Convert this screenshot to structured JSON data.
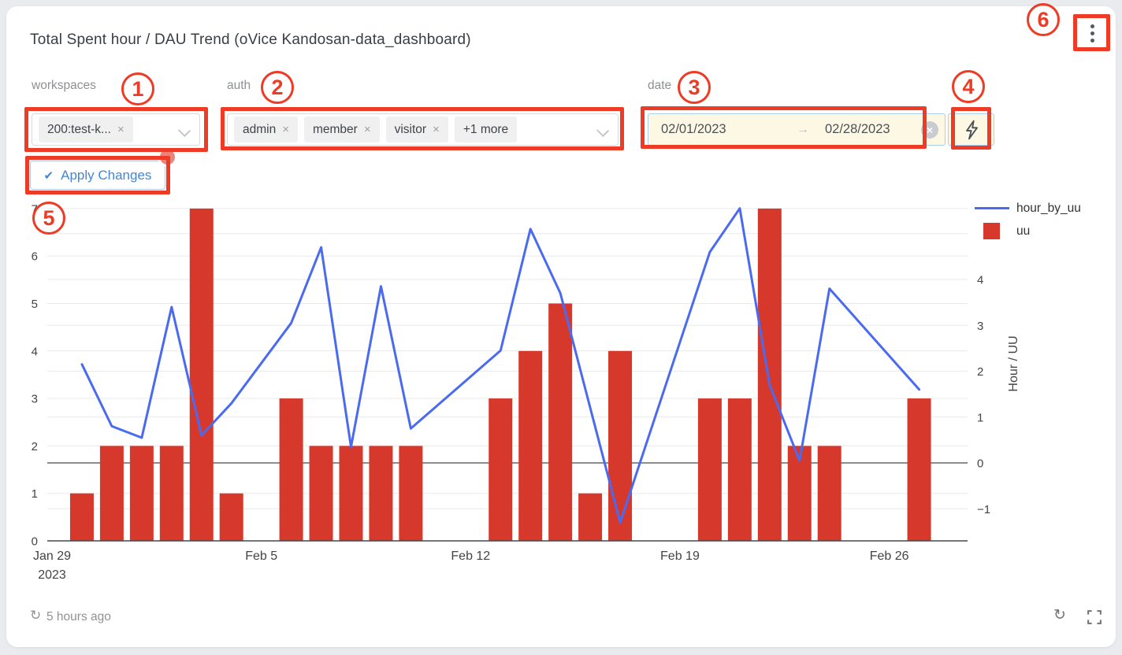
{
  "window": {
    "title": "Total Spent hour / DAU Trend (oVice Kandosan-data_dashboard)"
  },
  "filters": {
    "workspaces": {
      "label": "workspaces",
      "selected": [
        {
          "text": "200:test-k...",
          "remove": "×"
        }
      ]
    },
    "auth": {
      "label": "auth",
      "selected": [
        {
          "text": "admin",
          "remove": "×"
        },
        {
          "text": "member",
          "remove": "×"
        },
        {
          "text": "visitor",
          "remove": "×"
        }
      ],
      "overflow": "+1 more"
    },
    "date": {
      "label": "date",
      "start": "02/01/2023",
      "arrow": "→",
      "end": "02/28/2023",
      "clear": "×"
    }
  },
  "apply": {
    "label": "Apply Changes",
    "icon": "✔"
  },
  "annotations": {
    "color": "#ee3b26",
    "markers": [
      "1",
      "2",
      "3",
      "4",
      "5",
      "6"
    ]
  },
  "footer": {
    "last_updated": "5 hours ago",
    "refresh_glyph": "↻"
  },
  "chart_data": {
    "type": "bar+line combo",
    "title": "Total Spent hour / DAU Trend",
    "categories": [
      "Jan 29",
      "Jan 30",
      "Jan 31",
      "Feb 1",
      "Feb 2",
      "Feb 3",
      "Feb 4",
      "Feb 5",
      "Feb 6",
      "Feb 7",
      "Feb 8",
      "Feb 9",
      "Feb 10",
      "Feb 11",
      "Feb 12",
      "Feb 13",
      "Feb 14",
      "Feb 15",
      "Feb 16",
      "Feb 17",
      "Feb 18",
      "Feb 19",
      "Feb 20",
      "Feb 21",
      "Feb 22",
      "Feb 23",
      "Feb 24",
      "Feb 25",
      "Feb 26",
      "Feb 27",
      "Feb 28"
    ],
    "series": [
      {
        "name": "hour_by_uu",
        "type": "line",
        "axis": "right",
        "color": "#4a6af0",
        "values": [
          null,
          2.15,
          0.8,
          0.55,
          3.4,
          0.6,
          1.3,
          null,
          3.05,
          4.7,
          0.35,
          3.85,
          0.75,
          null,
          null,
          2.45,
          5.1,
          3.7,
          1.2,
          -1.3,
          null,
          null,
          4.6,
          5.55,
          1.7,
          0.05,
          3.8,
          null,
          null,
          1.6,
          null
        ]
      },
      {
        "name": "uu",
        "type": "bar",
        "axis": "left",
        "color": "#d6392b",
        "values": [
          0,
          1,
          2,
          2,
          2,
          7,
          1,
          0,
          3,
          2,
          2,
          2,
          2,
          0,
          0,
          3,
          4,
          5,
          1,
          4,
          0,
          0,
          3,
          3,
          7,
          2,
          2,
          0,
          0,
          3,
          0
        ]
      }
    ],
    "left_axis": {
      "range": [
        0,
        7.3
      ],
      "ticks": [
        {
          "v": 0,
          "label": "0"
        },
        {
          "v": 1,
          "label": "1"
        },
        {
          "v": 2,
          "label": "2"
        },
        {
          "v": 3,
          "label": "3"
        },
        {
          "v": 4,
          "label": "4"
        },
        {
          "v": 5,
          "label": "5"
        },
        {
          "v": 6,
          "label": "6"
        },
        {
          "v": 7,
          "label": "7"
        }
      ],
      "grid": [
        1,
        2,
        3,
        4,
        5,
        6,
        7
      ]
    },
    "right_axis": {
      "title": "Hour / UU",
      "range": [
        -1.7,
        5.55
      ],
      "ticks": [
        {
          "v": -1,
          "label": "−1"
        },
        {
          "v": 0,
          "label": "0"
        },
        {
          "v": 1,
          "label": "1"
        },
        {
          "v": 2,
          "label": "2"
        },
        {
          "v": 3,
          "label": "3"
        },
        {
          "v": 4,
          "label": "4"
        }
      ],
      "grid": [
        -1,
        1,
        2,
        3,
        4,
        5
      ]
    },
    "x_axis": {
      "ticks": [
        {
          "pos": 0,
          "label": "Jan 29",
          "sub": "2023"
        },
        {
          "pos": 7,
          "label": "Feb 5"
        },
        {
          "pos": 14,
          "label": "Feb 12"
        },
        {
          "pos": 21,
          "label": "Feb 19"
        },
        {
          "pos": 28,
          "label": "Feb 26"
        }
      ]
    },
    "legend_position": "top-right"
  }
}
